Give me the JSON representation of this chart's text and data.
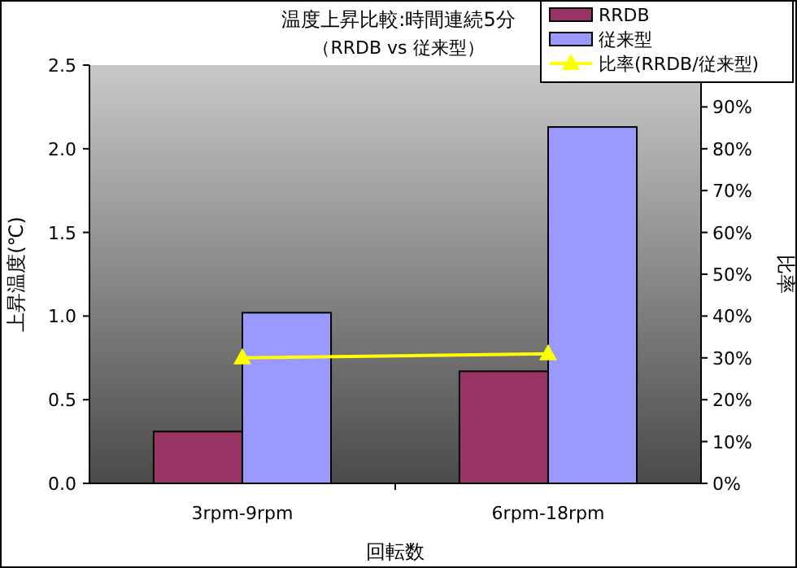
{
  "chart_data": {
    "type": "bar",
    "title": "温度上昇比較:時間連続5分",
    "subtitle": "（RRDB vs 従来型）",
    "xlabel": "回転数",
    "ylabel": "上昇温度(℃)",
    "y2label": "比率",
    "categories": [
      "3rpm-9rpm",
      "6rpm-18rpm"
    ],
    "series": [
      {
        "name": "RRDB",
        "color": "#993366",
        "values": [
          0.31,
          0.67
        ]
      },
      {
        "name": "従来型",
        "color": "#9999ff",
        "values": [
          1.02,
          2.13
        ]
      },
      {
        "name": "比率(RRDB/従来型)",
        "type": "line",
        "axis": "y2",
        "color": "#ffff00",
        "marker": "triangle",
        "values": [
          30,
          31
        ]
      }
    ],
    "ylim": [
      0,
      2.5
    ],
    "yticks": [
      {
        "value": 0,
        "label": "0.0"
      },
      {
        "value": 0.5,
        "label": "0.5"
      },
      {
        "value": 1,
        "label": "1.0"
      },
      {
        "value": 1.5,
        "label": "1.5"
      },
      {
        "value": 2,
        "label": "2.0"
      },
      {
        "value": 2.5,
        "label": "2.5"
      }
    ],
    "y2lim": [
      0,
      100
    ],
    "y2ticks": [
      {
        "value": 0,
        "label": "0%"
      },
      {
        "value": 10,
        "label": "10%"
      },
      {
        "value": 20,
        "label": "20%"
      },
      {
        "value": 30,
        "label": "30%"
      },
      {
        "value": 40,
        "label": "40%"
      },
      {
        "value": 50,
        "label": "50%"
      },
      {
        "value": 60,
        "label": "60%"
      },
      {
        "value": 70,
        "label": "70%"
      },
      {
        "value": 80,
        "label": "80%"
      },
      {
        "value": 90,
        "label": "90%"
      }
    ],
    "legend": "top right"
  }
}
